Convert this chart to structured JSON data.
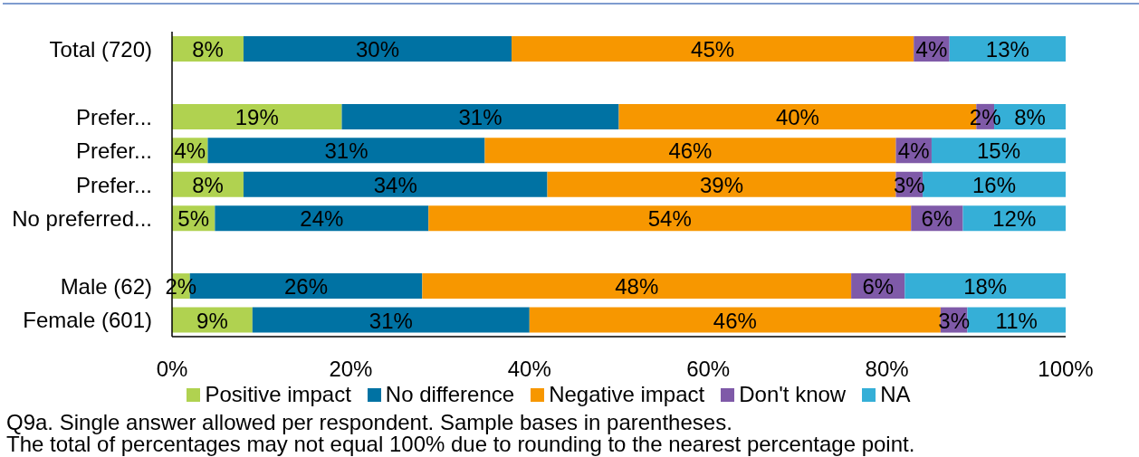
{
  "chart_data": {
    "type": "bar",
    "orientation": "horizontal",
    "stacked": true,
    "categories": [
      "Total (720)",
      null,
      "Prefer...",
      "Prefer...",
      "Prefer...",
      "No preferred...",
      null,
      "Male (62)",
      "Female (601)"
    ],
    "series": [
      {
        "name": "Positive impact",
        "color": "#b0d250",
        "values": [
          8,
          null,
          19,
          4,
          8,
          4.8,
          null,
          2,
          9
        ],
        "value_labels": [
          "8%",
          null,
          "19%",
          "4%",
          "8%",
          "5%",
          null,
          "2%",
          "9%"
        ]
      },
      {
        "name": "No difference",
        "color": "#0072a3",
        "values": [
          30,
          null,
          31,
          31,
          34,
          23.9,
          null,
          26,
          31
        ],
        "value_labels": [
          "30%",
          null,
          "31%",
          "31%",
          "34%",
          "24%",
          null,
          "26%",
          "31%"
        ]
      },
      {
        "name": "Negative impact",
        "color": "#f79700",
        "values": [
          45,
          null,
          40,
          46,
          39,
          54.0,
          null,
          48,
          46
        ],
        "value_labels": [
          "45%",
          null,
          "40%",
          "46%",
          "39%",
          "54%",
          null,
          "48%",
          "46%"
        ]
      },
      {
        "name": "Don't know",
        "color": "#7f5aa8",
        "values": [
          4,
          null,
          2,
          4,
          3,
          5.8,
          null,
          6,
          3
        ],
        "value_labels": [
          "4%",
          null,
          "2%",
          "4%",
          "3%",
          "6%",
          null,
          "6%",
          "3%"
        ]
      },
      {
        "name": "NA",
        "color": "#35afd7",
        "values": [
          13,
          null,
          8,
          15,
          16,
          11.5,
          null,
          18,
          11
        ],
        "value_labels": [
          "13%",
          null,
          "8%",
          "15%",
          "16%",
          "12%",
          null,
          "18%",
          "11%"
        ]
      }
    ],
    "xlim": [
      0,
      100
    ],
    "xticks": [
      {
        "value": 0,
        "label": "0%"
      },
      {
        "value": 20,
        "label": "20%"
      },
      {
        "value": 40,
        "label": "40%"
      },
      {
        "value": 60,
        "label": "60%"
      },
      {
        "value": 80,
        "label": "80%"
      },
      {
        "value": 100,
        "label": "100%"
      }
    ],
    "legend": "bottom",
    "annotations": [
      "Q9a. Single answer allowed per respondent. Sample bases in parentheses.",
      "The total of percentages may not equal 100% due to rounding to the nearest percentage point."
    ]
  }
}
